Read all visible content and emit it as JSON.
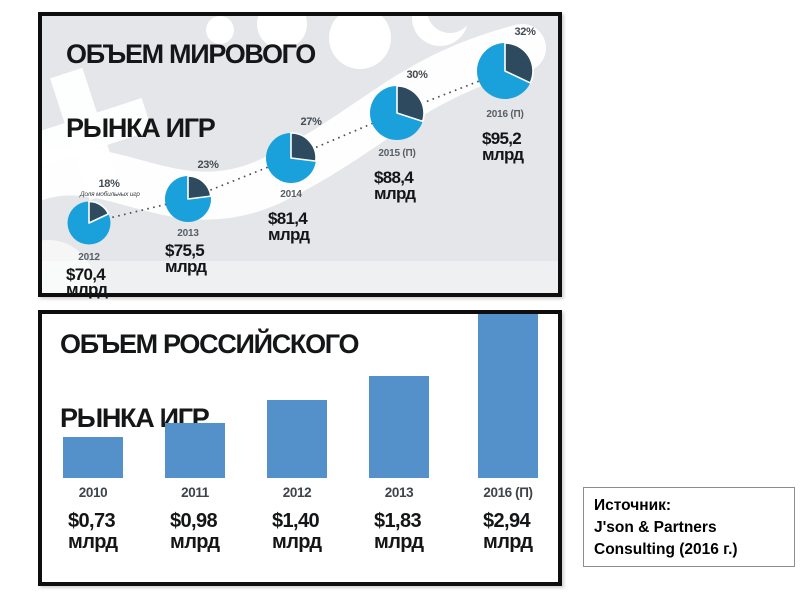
{
  "world_chart": {
    "title_line1": "ОБЪЕМ МИРОВОГО",
    "title_line2": "РЫНКА ИГР",
    "mobile_share_note": "Доля мобильных игр",
    "points": [
      {
        "year": "2012",
        "share_pct": "18%",
        "value": "$70,4",
        "unit": "млрд"
      },
      {
        "year": "2013",
        "share_pct": "23%",
        "value": "$75,5",
        "unit": "млрд"
      },
      {
        "year": "2014",
        "share_pct": "27%",
        "value": "$81,4",
        "unit": "млрд"
      },
      {
        "year": "2015 (П)",
        "share_pct": "30%",
        "value": "$88,4",
        "unit": "млрд"
      },
      {
        "year": "2016 (П)",
        "share_pct": "32%",
        "value": "$95,2",
        "unit": "млрд"
      }
    ],
    "colors": {
      "pie_main": "#1aa1dc",
      "pie_share": "#2d4a5e",
      "background": "#e4e6e9"
    }
  },
  "russia_chart": {
    "title_line1": "ОБЪЕМ РОССИЙСКОГО",
    "title_line2": "РЫНКА ИГР",
    "points": [
      {
        "year": "2010",
        "value": "$0,73",
        "unit": "млрд"
      },
      {
        "year": "2011",
        "value": "$0,98",
        "unit": "млрд"
      },
      {
        "year": "2012",
        "value": "$1,40",
        "unit": "млрд"
      },
      {
        "year": "2013",
        "value": "$1,83",
        "unit": "млрд"
      },
      {
        "year": "2016 (П)",
        "value": "$2,94",
        "unit": "млрд"
      }
    ],
    "colors": {
      "bar": "#5491cb"
    }
  },
  "source": {
    "label": "Источник:",
    "line1": "J'son & Partners",
    "line2": "Consulting (2016 г.)"
  },
  "chart_data": [
    {
      "type": "line",
      "title": "ОБЪЕМ МИРОВОГО РЫНКА ИГР",
      "x": [
        "2012",
        "2013",
        "2014",
        "2015 (П)",
        "2016 (П)"
      ],
      "series": [
        {
          "name": "Объем мирового рынка игр, $ млрд",
          "values": [
            70.4,
            75.5,
            81.4,
            88.4,
            95.2
          ]
        },
        {
          "name": "Доля мобильных игр, %",
          "values": [
            18,
            23,
            27,
            30,
            32
          ]
        }
      ],
      "legend": "none",
      "grid": false,
      "notes": "Пять круговых диаграмм растущего размера вдоль восходящей пунктирной линии; тёмный сектор каждой диаграммы — доля мобильных игр"
    },
    {
      "type": "bar",
      "title": "ОБЪЕМ РОССИЙСКОГО РЫНКА ИГР",
      "categories": [
        "2010",
        "2011",
        "2012",
        "2013",
        "2016 (П)"
      ],
      "values": [
        0.73,
        0.98,
        1.4,
        1.83,
        2.94
      ],
      "xlabel": "",
      "ylabel": "$ млрд",
      "ylim": [
        0,
        2.94
      ],
      "grid": false,
      "legend": "none"
    }
  ]
}
